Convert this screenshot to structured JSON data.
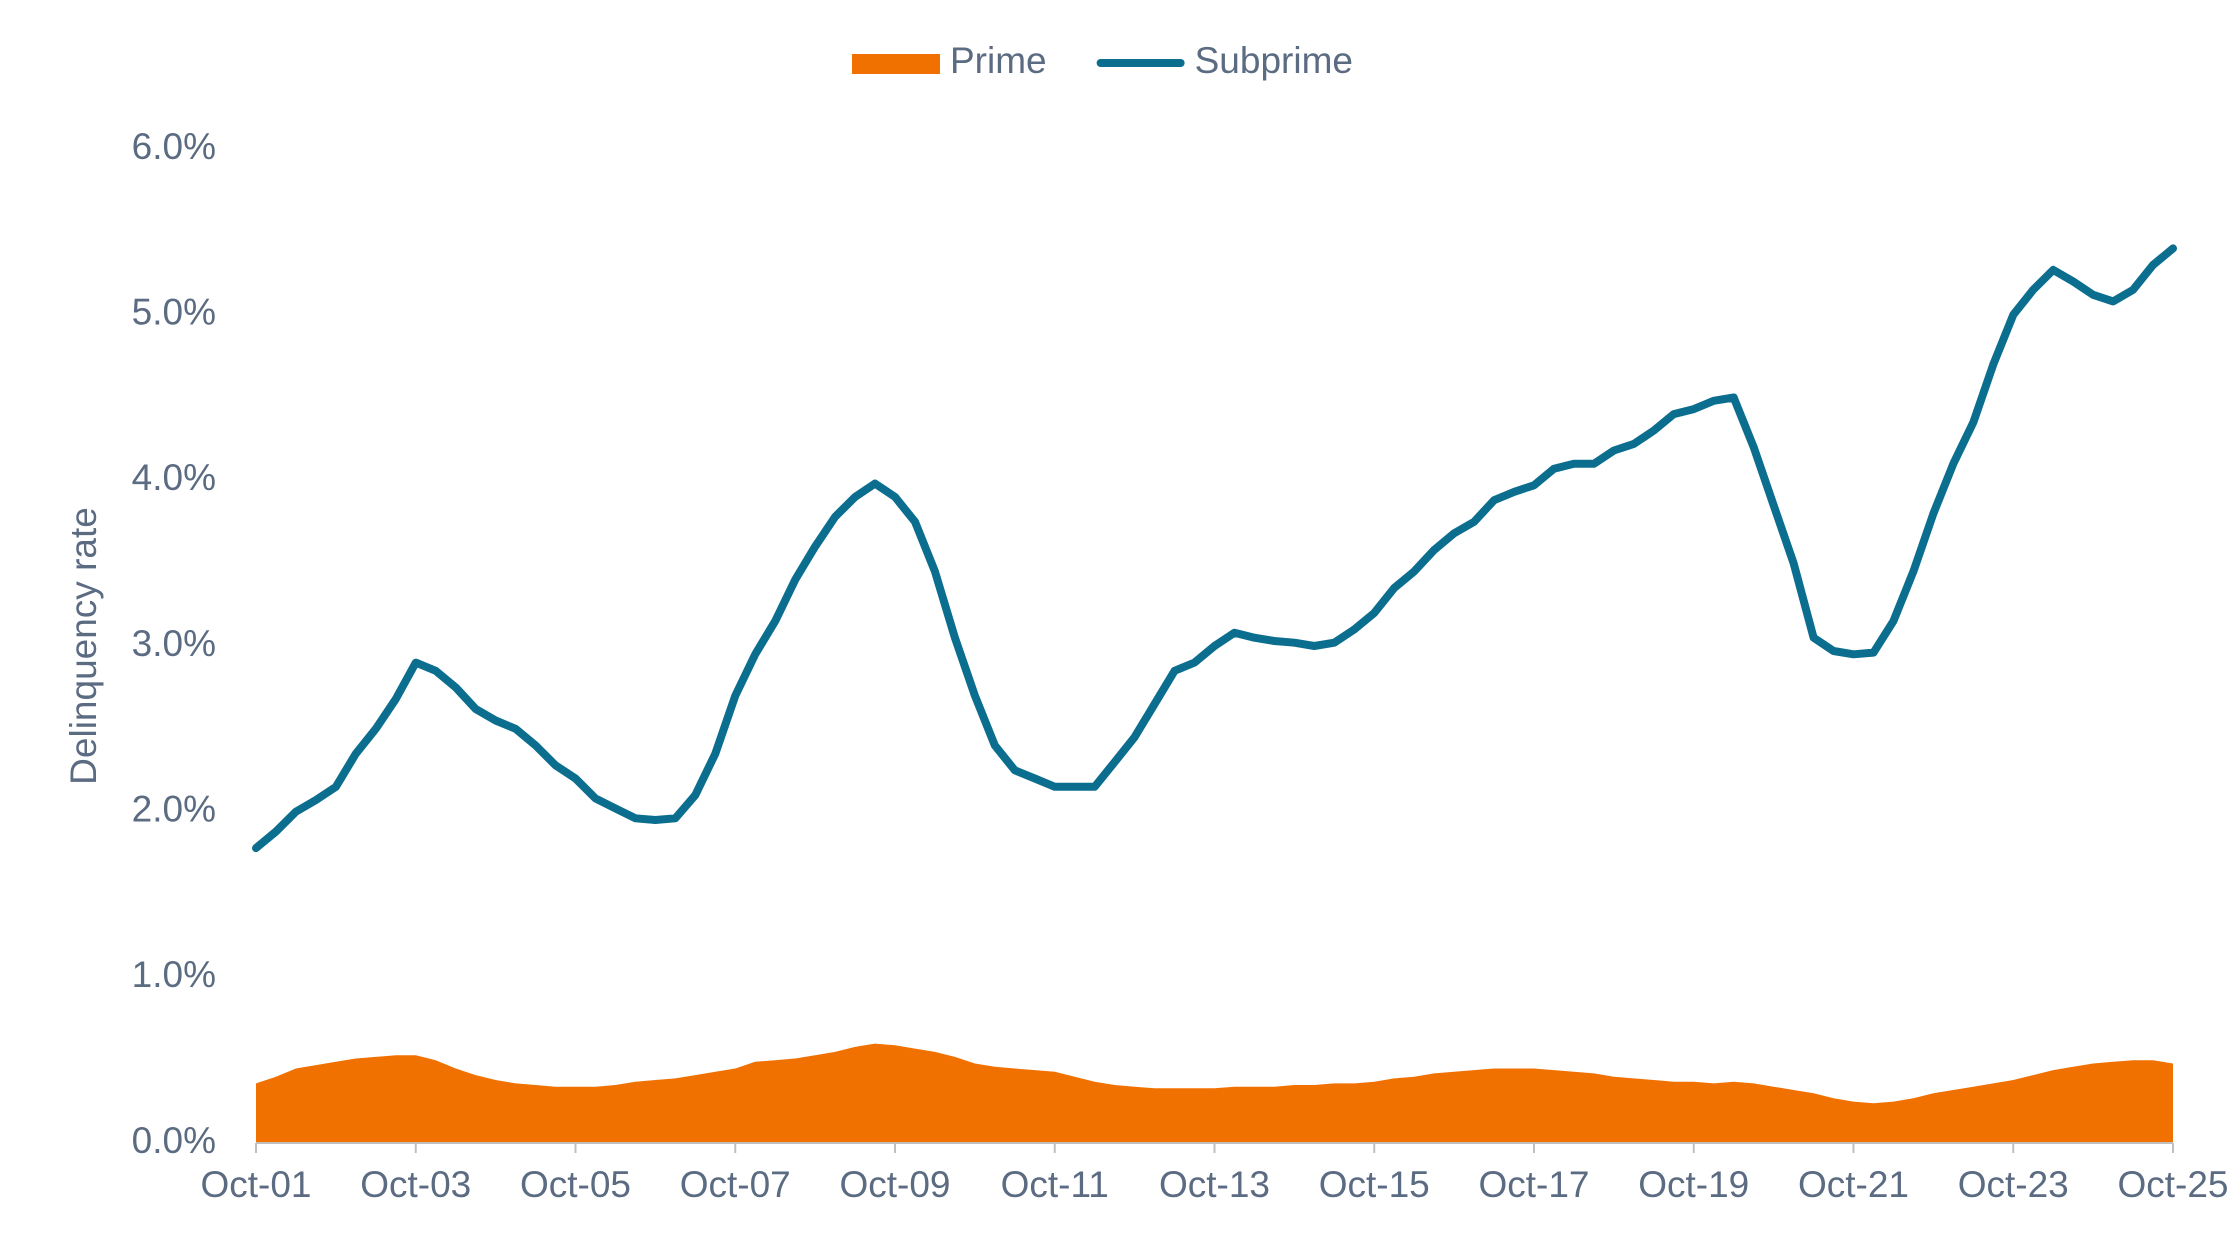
{
  "chart_data": {
    "type": "line",
    "ylabel": "Delinquency rate",
    "categories": [
      "Oct-01",
      null,
      null,
      null,
      null,
      null,
      null,
      null,
      "Oct-03",
      null,
      null,
      null,
      null,
      null,
      null,
      null,
      "Oct-05",
      null,
      null,
      null,
      null,
      null,
      null,
      null,
      "Oct-07",
      null,
      null,
      null,
      null,
      null,
      null,
      null,
      "Oct-09",
      null,
      null,
      null,
      null,
      null,
      null,
      null,
      "Oct-11",
      null,
      null,
      null,
      null,
      null,
      null,
      null,
      "Oct-13",
      null,
      null,
      null,
      null,
      null,
      null,
      null,
      "Oct-15",
      null,
      null,
      null,
      null,
      null,
      null,
      null,
      "Oct-17",
      null,
      null,
      null,
      null,
      null,
      null,
      null,
      "Oct-19",
      null,
      null,
      null,
      null,
      null,
      null,
      null,
      "Oct-21",
      null,
      null,
      null,
      null,
      null,
      null,
      null,
      "Oct-23",
      null,
      null,
      null,
      null,
      null,
      null,
      null,
      "Oct-25"
    ],
    "series": [
      {
        "name": "Prime",
        "kind": "area",
        "color": "#f07000",
        "values": [
          0.36,
          0.4,
          0.45,
          0.47,
          0.49,
          0.51,
          0.52,
          0.53,
          0.53,
          0.5,
          0.45,
          0.41,
          0.38,
          0.36,
          0.35,
          0.34,
          0.34,
          0.34,
          0.35,
          0.37,
          0.38,
          0.39,
          0.41,
          0.43,
          0.45,
          0.49,
          0.5,
          0.51,
          0.53,
          0.55,
          0.58,
          0.6,
          0.59,
          0.57,
          0.55,
          0.52,
          0.48,
          0.46,
          0.45,
          0.44,
          0.43,
          0.4,
          0.37,
          0.35,
          0.34,
          0.33,
          0.33,
          0.33,
          0.33,
          0.34,
          0.34,
          0.34,
          0.35,
          0.35,
          0.36,
          0.36,
          0.37,
          0.39,
          0.4,
          0.42,
          0.43,
          0.44,
          0.45,
          0.45,
          0.45,
          0.44,
          0.43,
          0.42,
          0.4,
          0.39,
          0.38,
          0.37,
          0.37,
          0.36,
          0.37,
          0.36,
          0.34,
          0.32,
          0.3,
          0.27,
          0.25,
          0.24,
          0.25,
          0.27,
          0.3,
          0.32,
          0.34,
          0.36,
          0.38,
          0.41,
          0.44,
          0.46,
          0.48,
          0.49,
          0.5,
          0.5,
          0.48
        ]
      },
      {
        "name": "Subprime",
        "kind": "line",
        "color": "#0b6e8f",
        "values": [
          1.78,
          1.88,
          2.0,
          2.07,
          2.15,
          2.35,
          2.5,
          2.68,
          2.9,
          2.85,
          2.75,
          2.62,
          2.55,
          2.5,
          2.4,
          2.28,
          2.2,
          2.08,
          2.02,
          1.96,
          1.95,
          1.96,
          2.1,
          2.35,
          2.7,
          2.95,
          3.15,
          3.4,
          3.6,
          3.78,
          3.9,
          3.98,
          3.9,
          3.75,
          3.45,
          3.05,
          2.7,
          2.4,
          2.25,
          2.2,
          2.15,
          2.15,
          2.15,
          2.3,
          2.45,
          2.65,
          2.85,
          2.9,
          3.0,
          3.08,
          3.05,
          3.03,
          3.02,
          3.0,
          3.02,
          3.1,
          3.2,
          3.35,
          3.45,
          3.58,
          3.68,
          3.75,
          3.88,
          3.93,
          3.97,
          4.07,
          4.1,
          4.1,
          4.18,
          4.22,
          4.3,
          4.4,
          4.43,
          4.48,
          4.5,
          4.2,
          3.85,
          3.5,
          3.05,
          2.97,
          2.95,
          2.96,
          3.15,
          3.45,
          3.8,
          4.1,
          4.35,
          4.7,
          5.0,
          5.15,
          5.27,
          5.2,
          5.12,
          5.08,
          5.15,
          5.3,
          5.4
        ]
      }
    ],
    "ylim": [
      0,
      6
    ],
    "yticks": [
      {
        "value": 0,
        "label": "0.0%"
      },
      {
        "value": 1,
        "label": "1.0%"
      },
      {
        "value": 2,
        "label": "2.0%"
      },
      {
        "value": 3,
        "label": "3.0%"
      },
      {
        "value": 4,
        "label": "4.0%"
      },
      {
        "value": 5,
        "label": "5.0%"
      },
      {
        "value": 6,
        "label": "6.0%"
      }
    ],
    "legend": "top"
  }
}
